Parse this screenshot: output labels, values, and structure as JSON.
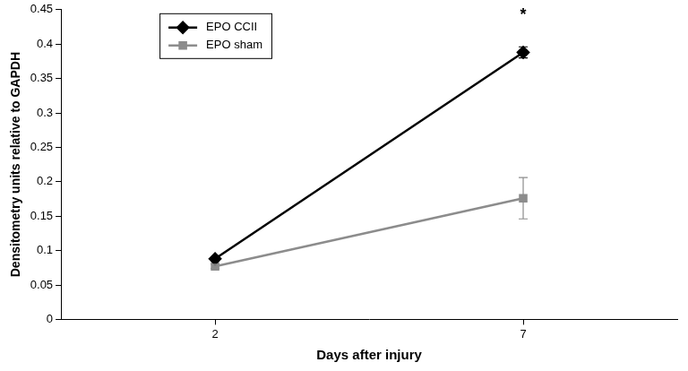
{
  "chart_data": {
    "type": "line",
    "x_label": "Days after injury",
    "y_label": "Densitometry units relative to GAPDH",
    "categories": [
      "2",
      "7"
    ],
    "series": [
      {
        "name": "EPO CCII",
        "color": "#000000",
        "marker": "diamond",
        "values": [
          0.088,
          0.388
        ],
        "errors": [
          0.003,
          0.008
        ]
      },
      {
        "name": "EPO sham",
        "color": "#8c8c8c",
        "marker": "square",
        "values": [
          0.077,
          0.176
        ],
        "errors": [
          0.003,
          0.03
        ]
      }
    ],
    "ylim": [
      0,
      0.45
    ],
    "yticks": [
      0,
      0.05,
      0.1,
      0.15,
      0.2,
      0.25,
      0.3,
      0.35,
      0.4,
      0.45
    ],
    "grid": false,
    "legend": "upper center",
    "annotations": [
      {
        "text": "*",
        "category": "7",
        "series": "EPO CCII"
      }
    ]
  }
}
